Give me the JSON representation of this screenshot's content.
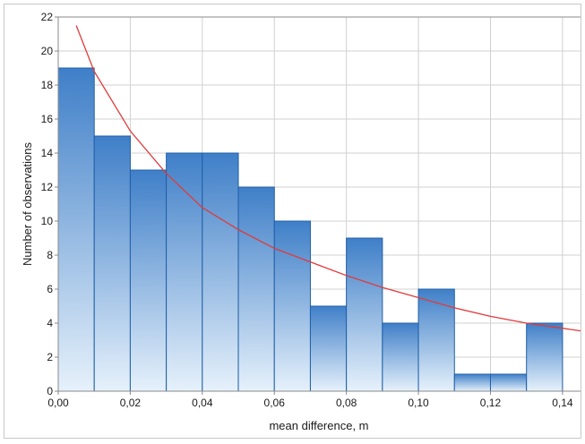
{
  "chart_data": {
    "type": "bar",
    "subtype": "histogram",
    "xlabel": "mean difference, m",
    "ylabel": "Number of observations",
    "xlim": [
      0.0,
      0.145
    ],
    "ylim": [
      0,
      22
    ],
    "bin_width": 0.01,
    "bins": [
      {
        "start": 0.0,
        "end": 0.01,
        "count": 19
      },
      {
        "start": 0.01,
        "end": 0.02,
        "count": 15
      },
      {
        "start": 0.02,
        "end": 0.03,
        "count": 13
      },
      {
        "start": 0.03,
        "end": 0.04,
        "count": 14
      },
      {
        "start": 0.04,
        "end": 0.05,
        "count": 14
      },
      {
        "start": 0.05,
        "end": 0.06,
        "count": 12
      },
      {
        "start": 0.06,
        "end": 0.07,
        "count": 10
      },
      {
        "start": 0.07,
        "end": 0.08,
        "count": 5
      },
      {
        "start": 0.08,
        "end": 0.09,
        "count": 9
      },
      {
        "start": 0.09,
        "end": 0.1,
        "count": 4
      },
      {
        "start": 0.1,
        "end": 0.11,
        "count": 6
      },
      {
        "start": 0.11,
        "end": 0.12,
        "count": 1
      },
      {
        "start": 0.12,
        "end": 0.13,
        "count": 1
      },
      {
        "start": 0.13,
        "end": 0.14,
        "count": 4
      }
    ],
    "x_ticks": [
      {
        "value": 0.0,
        "label": "0,00"
      },
      {
        "value": 0.02,
        "label": "0,02"
      },
      {
        "value": 0.04,
        "label": "0,04"
      },
      {
        "value": 0.06,
        "label": "0,06"
      },
      {
        "value": 0.08,
        "label": "0,08"
      },
      {
        "value": 0.1,
        "label": "0,10"
      },
      {
        "value": 0.12,
        "label": "0,12"
      },
      {
        "value": 0.14,
        "label": "0,14"
      }
    ],
    "y_ticks": [
      {
        "value": 0,
        "label": "0"
      },
      {
        "value": 2,
        "label": "2"
      },
      {
        "value": 4,
        "label": "4"
      },
      {
        "value": 6,
        "label": "6"
      },
      {
        "value": 8,
        "label": "8"
      },
      {
        "value": 10,
        "label": "10"
      },
      {
        "value": 12,
        "label": "12"
      },
      {
        "value": 14,
        "label": "14"
      },
      {
        "value": 16,
        "label": "16"
      },
      {
        "value": 18,
        "label": "18"
      },
      {
        "value": 20,
        "label": "20"
      },
      {
        "value": 22,
        "label": "22"
      }
    ],
    "fitted_curve": {
      "type": "line",
      "color": "#e03a3a",
      "points": [
        {
          "x": 0.005,
          "y": 21.5
        },
        {
          "x": 0.01,
          "y": 18.8
        },
        {
          "x": 0.02,
          "y": 15.3
        },
        {
          "x": 0.03,
          "y": 12.8
        },
        {
          "x": 0.04,
          "y": 10.8
        },
        {
          "x": 0.05,
          "y": 9.5
        },
        {
          "x": 0.06,
          "y": 8.4
        },
        {
          "x": 0.07,
          "y": 7.6
        },
        {
          "x": 0.08,
          "y": 6.8
        },
        {
          "x": 0.09,
          "y": 6.1
        },
        {
          "x": 0.1,
          "y": 5.5
        },
        {
          "x": 0.11,
          "y": 4.9
        },
        {
          "x": 0.12,
          "y": 4.4
        },
        {
          "x": 0.13,
          "y": 4.0
        },
        {
          "x": 0.14,
          "y": 3.7
        },
        {
          "x": 0.145,
          "y": 3.55
        }
      ]
    },
    "grid": true,
    "colors": {
      "bar_top": "#3f7fc8",
      "bar_bottom": "#e6f1fb",
      "bar_edge": "#1f5fa8",
      "grid": "#d0d0d0",
      "axis": "#8a8a8a"
    }
  }
}
